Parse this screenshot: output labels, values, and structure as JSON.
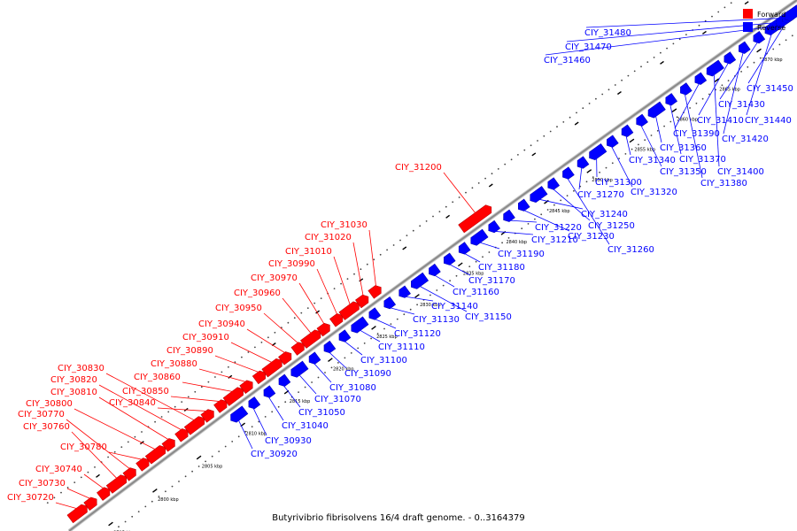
{
  "caption": "Butyrivibrio fibrisolvens 16/4 draft genome. - 0..3164379",
  "legend": {
    "forward_label": "Forward",
    "reverse_label": "Reverse",
    "forward_color": "#ff0000",
    "reverse_color": "#0000ff"
  },
  "tick_labels": [
    "2795 kbp",
    "2800 kbp",
    "2805 kbp",
    "2810 kbp",
    "2815 kbp",
    "2820 kbp",
    "2825 kbp",
    "2830 kbp",
    "2835 kbp",
    "2840 kbp",
    "2845 kbp",
    "2850 kbp",
    "2855 kbp",
    "2860 kbp",
    "2865 kbp",
    "2870 kbp",
    "2875 kbp"
  ],
  "forward_genes": [
    "CIY_30720",
    "CIY_30730",
    "CIY_30740",
    "CIY_30760",
    "CIY_30770",
    "CIY_30780",
    "CIY_30800",
    "CIY_30810",
    "CIY_30820",
    "CIY_30830",
    "CIY_30840",
    "CIY_30850",
    "CIY_30860",
    "CIY_30880",
    "CIY_30890",
    "CIY_30910",
    "CIY_30940",
    "CIY_30950",
    "CIY_30960",
    "CIY_30970",
    "CIY_30990",
    "CIY_31010",
    "CIY_31020",
    "CIY_31030",
    "CIY_31200"
  ],
  "reverse_genes": [
    "CIY_30920",
    "CIY_30930",
    "CIY_31040",
    "CIY_31050",
    "CIY_31070",
    "CIY_31080",
    "CIY_31090",
    "CIY_31100",
    "CIY_31110",
    "CIY_31120",
    "CIY_31130",
    "CIY_31140",
    "CIY_31150",
    "CIY_31160",
    "CIY_31170",
    "CIY_31180",
    "CIY_31190",
    "CIY_31210",
    "CIY_31220",
    "CIY_31230",
    "CIY_31240",
    "CIY_31250",
    "CIY_31260",
    "CIY_31270",
    "CIY_31300",
    "CIY_31320",
    "CIY_31340",
    "CIY_31350",
    "CIY_31360",
    "CIY_31370",
    "CIY_31380",
    "CIY_31390",
    "CIY_31400",
    "CIY_31410",
    "CIY_31420",
    "CIY_31430",
    "CIY_31440",
    "CIY_31450",
    "CIY_31460",
    "CIY_31470",
    "CIY_31480"
  ]
}
